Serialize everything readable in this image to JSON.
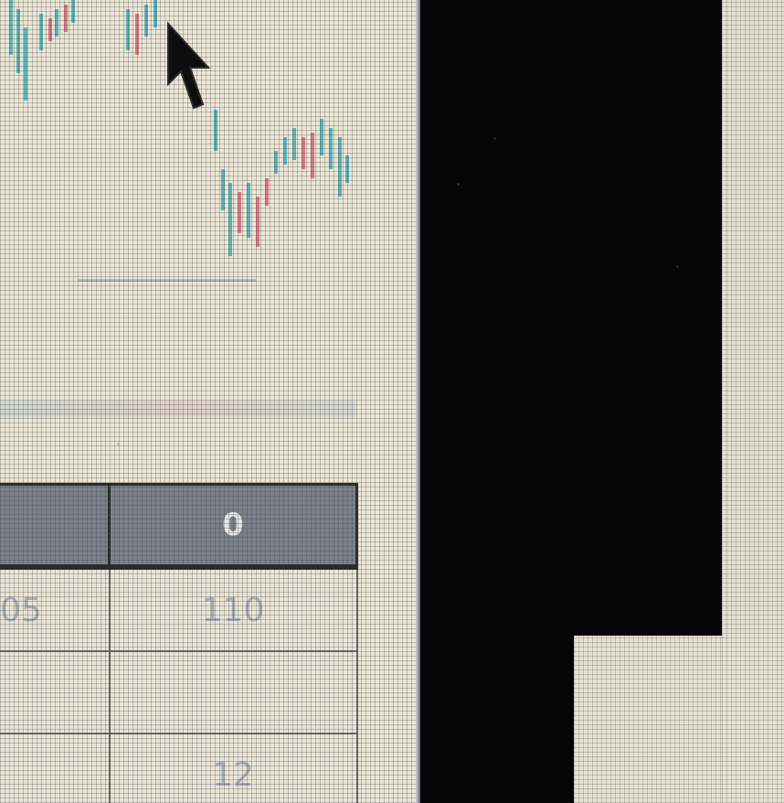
{
  "chart": {
    "description_series_colors": {
      "up": "#d9546a",
      "down": "#2aa6b8"
    }
  },
  "table": {
    "header": {
      "col_a": "",
      "col_b": "0"
    },
    "rows": [
      {
        "col_a": "05",
        "col_b": "110"
      },
      {
        "col_a": "",
        "col_b": ""
      },
      {
        "col_a": "",
        "col_b": "12"
      }
    ]
  },
  "colors": {
    "screen_background": "#ebe6d6",
    "table_header": "#7c828c",
    "table_border": "#2a2a2a",
    "bezel": "#050505"
  },
  "icons": {
    "cursor": "arrow-cursor-icon"
  }
}
